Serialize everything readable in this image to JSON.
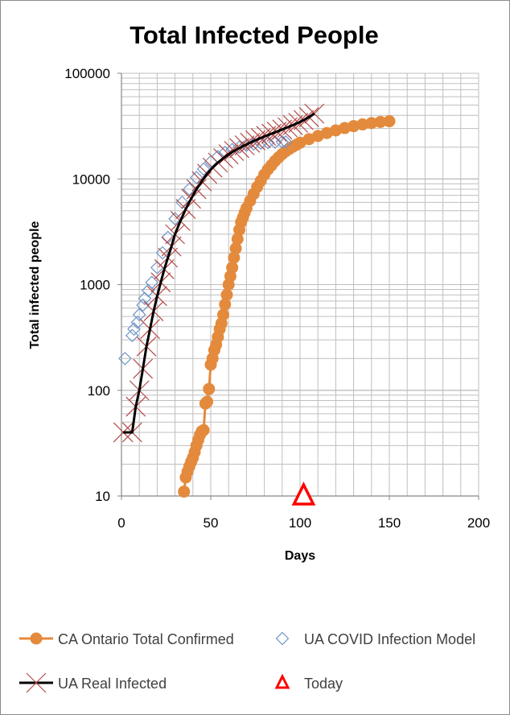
{
  "chart_data": {
    "type": "scatter",
    "title": "Total Infected People",
    "xlabel": "Days",
    "ylabel": "Total infected people",
    "xlim": [
      0,
      200
    ],
    "ylim": [
      10,
      100000
    ],
    "y_scale": "log",
    "grid": true,
    "legend_position": "bottom",
    "x_ticks": [
      "0",
      "50",
      "100",
      "150",
      "200"
    ],
    "y_ticks": [
      "10",
      "100",
      "1000",
      "10000",
      "100000"
    ],
    "colors": {
      "ontario": "#e48a3c",
      "model": "#6f94c8",
      "real_marker": "#b34a47",
      "real_line": "#000000",
      "today": "#ff0000",
      "grid": "#bfbfbf",
      "axis": "#868686"
    },
    "series": [
      {
        "name": "CA Ontario Total Confirmed",
        "marker": "circle-line",
        "x": [
          35,
          36,
          37,
          38,
          39,
          40,
          41,
          42,
          43,
          44,
          45,
          46,
          47,
          48,
          49,
          50,
          51,
          52,
          53,
          54,
          55,
          56,
          57,
          58,
          59,
          60,
          61,
          62,
          63,
          64,
          65,
          66,
          67,
          68,
          69,
          70,
          72,
          74,
          76,
          78,
          80,
          82,
          84,
          86,
          88,
          90,
          92,
          94,
          96,
          98,
          100,
          105,
          110,
          115,
          120,
          125,
          130,
          135,
          140,
          145,
          150
        ],
        "y": [
          11,
          15,
          17,
          19,
          21,
          23,
          26,
          30,
          34,
          38,
          41,
          42,
          75,
          78,
          103,
          175,
          200,
          240,
          270,
          320,
          380,
          430,
          520,
          650,
          800,
          1000,
          1200,
          1450,
          1800,
          2200,
          2700,
          3300,
          3900,
          4300,
          4800,
          5300,
          6200,
          7200,
          8400,
          9600,
          11000,
          12300,
          13500,
          14800,
          16000,
          17200,
          18300,
          19300,
          20200,
          21100,
          22000,
          23800,
          25500,
          27200,
          28800,
          30300,
          31600,
          32800,
          33800,
          34600,
          35200
        ]
      },
      {
        "name": "UA COVID Infection Model",
        "marker": "diamond",
        "x": [
          2,
          6,
          7,
          9,
          10,
          12,
          13,
          15,
          17,
          20,
          23,
          26,
          30,
          34,
          38,
          42,
          46,
          50,
          54,
          58,
          62,
          66,
          70,
          74,
          78,
          82,
          86,
          90,
          92
        ],
        "y": [
          200,
          330,
          380,
          440,
          520,
          640,
          740,
          880,
          1050,
          1450,
          2000,
          2800,
          4200,
          6000,
          8000,
          10300,
          12400,
          14500,
          16300,
          17800,
          19000,
          20000,
          20800,
          21400,
          21800,
          22100,
          22300,
          22400,
          22400
        ]
      },
      {
        "name": "UA Real Infected",
        "marker": "x-line",
        "x": [
          1,
          6,
          8,
          10,
          12,
          14,
          16,
          18,
          20,
          22,
          24,
          26,
          28,
          30,
          33,
          36,
          39,
          42,
          45,
          48,
          51,
          54,
          57,
          60,
          63,
          66,
          69,
          72,
          75,
          78,
          81,
          84,
          87,
          90,
          93,
          96,
          99,
          102,
          105,
          108
        ],
        "y": [
          40,
          40,
          70,
          100,
          160,
          260,
          380,
          560,
          780,
          1050,
          1400,
          1800,
          2300,
          3000,
          4000,
          5200,
          6500,
          8000,
          9500,
          11200,
          12800,
          14300,
          15700,
          17100,
          18400,
          19600,
          20800,
          22000,
          23200,
          24400,
          25600,
          26800,
          28000,
          29400,
          30800,
          32300,
          34000,
          36000,
          38500,
          41500
        ]
      },
      {
        "name": "Today",
        "marker": "triangle",
        "x": [
          102
        ],
        "y": [
          10
        ]
      }
    ]
  }
}
